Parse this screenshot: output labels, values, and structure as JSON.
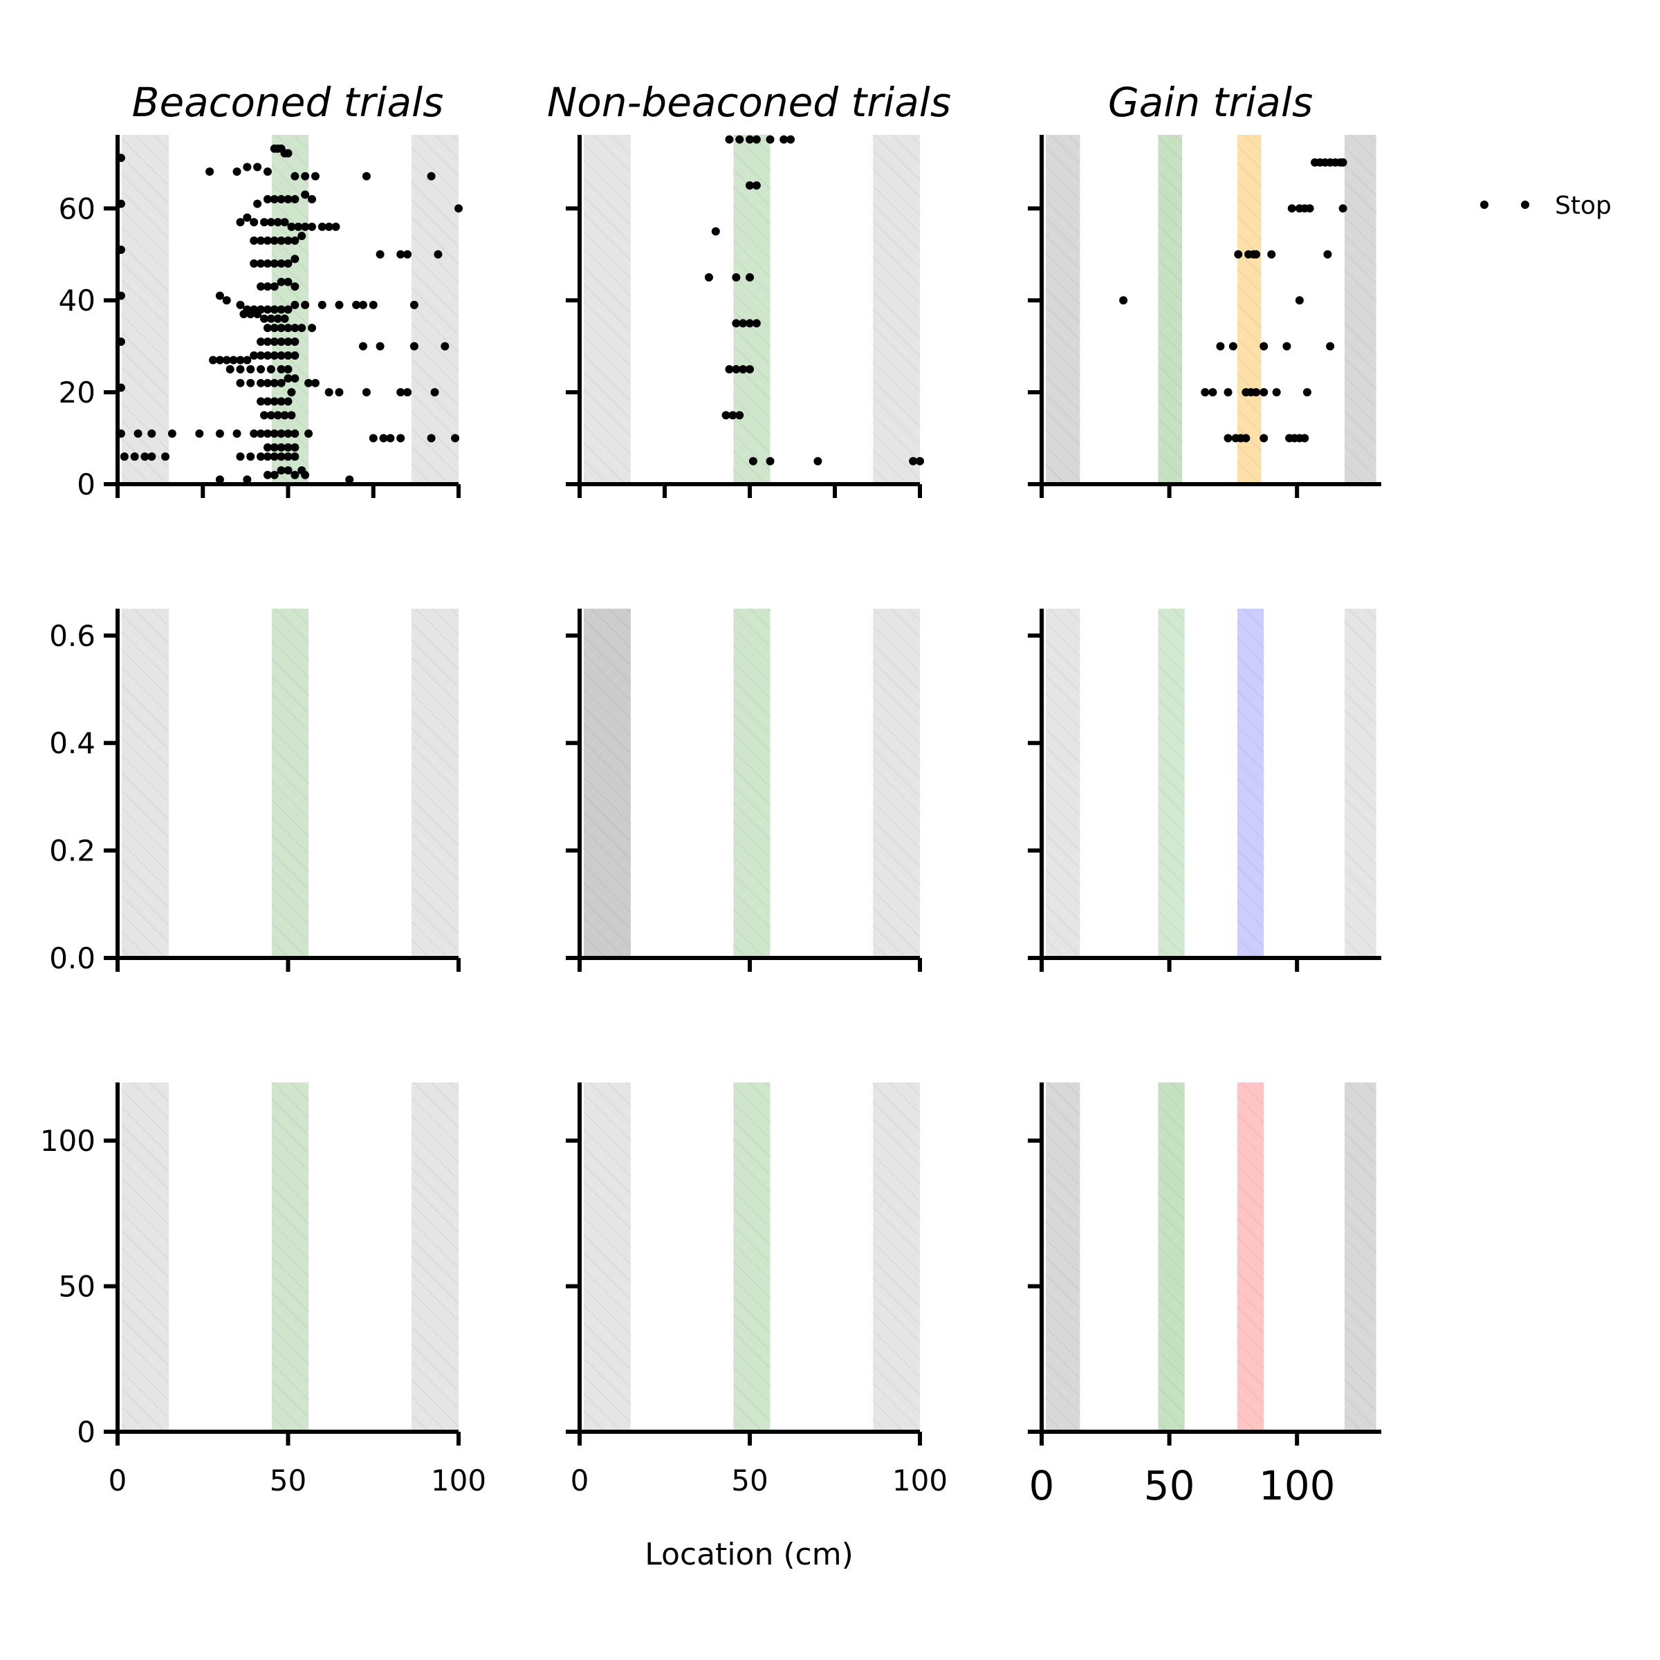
{
  "chart_data": {
    "type": "scatter",
    "xlabel": "Location (cm)",
    "legend": {
      "label": "Stop",
      "placement": "right"
    },
    "columns": [
      {
        "title": "Beaconed trials",
        "xlim": [
          0,
          100
        ]
      },
      {
        "title": "Non-beaconed trials",
        "xlim": [
          0,
          100
        ]
      },
      {
        "title": "Gain trials",
        "xlim": [
          0,
          133
        ]
      }
    ],
    "rows": [
      {
        "ylim": [
          0,
          76
        ],
        "yticks": [
          0,
          20,
          40,
          60
        ]
      },
      {
        "ylim": [
          0,
          0.65
        ],
        "yticks": [
          "0.0",
          "0.2",
          "0.4",
          "0.6"
        ]
      },
      {
        "ylim": [
          0,
          120
        ],
        "yticks": [
          0,
          50,
          100
        ]
      }
    ],
    "xticks": {
      "standard": [
        0,
        50,
        100
      ],
      "gain": [
        0,
        50,
        100
      ]
    },
    "zones": [
      {
        "col": 0,
        "row": "all",
        "x": [
          0,
          15
        ],
        "color": "#e5e5e5"
      },
      {
        "col": 0,
        "row": "all",
        "x": [
          44,
          56
        ],
        "color": "#cfe6cc"
      },
      {
        "col": 0,
        "row": "all",
        "x": [
          85,
          100
        ],
        "color": "#e5e5e5"
      },
      {
        "col": 1,
        "row": "all",
        "x": [
          0,
          15
        ],
        "color": "#e5e5e5"
      },
      {
        "col": 1,
        "row": 1,
        "x": [
          0,
          15
        ],
        "color": "#cccccc"
      },
      {
        "col": 1,
        "row": "all",
        "x": [
          44,
          56
        ],
        "color": "#cfe6cc"
      },
      {
        "col": 1,
        "row": "all",
        "x": [
          85,
          100
        ],
        "color": "#e5e5e5"
      },
      {
        "col": 2,
        "row": 0,
        "x": [
          0,
          15
        ],
        "color": "#d8d8d8"
      },
      {
        "col": 2,
        "row": 0,
        "x": [
          44,
          55
        ],
        "color": "#c6e1c2"
      },
      {
        "col": 2,
        "row": 0,
        "x": [
          75,
          86
        ],
        "color": "#fde0a8"
      },
      {
        "col": 2,
        "row": 0,
        "x": [
          117,
          131
        ],
        "color": "#d8d8d8"
      },
      {
        "col": 2,
        "row": 1,
        "x": [
          0,
          15
        ],
        "color": "#e5e5e5"
      },
      {
        "col": 2,
        "row": 1,
        "x": [
          44,
          56
        ],
        "color": "#d3e8d0"
      },
      {
        "col": 2,
        "row": 1,
        "x": [
          75,
          87
        ],
        "color": "#ccccff"
      },
      {
        "col": 2,
        "row": 1,
        "x": [
          117,
          131
        ],
        "color": "#e5e5e5"
      },
      {
        "col": 2,
        "row": 2,
        "x": [
          0,
          15
        ],
        "color": "#d8d8d8"
      },
      {
        "col": 2,
        "row": 2,
        "x": [
          44,
          56
        ],
        "color": "#c6e1c2"
      },
      {
        "col": 2,
        "row": 2,
        "x": [
          75,
          87
        ],
        "color": "#ffc4c4"
      },
      {
        "col": 2,
        "row": 2,
        "x": [
          117,
          131
        ],
        "color": "#d8d8d8"
      }
    ],
    "stops": {
      "beaconed": [
        [
          1,
          71
        ],
        [
          1,
          61
        ],
        [
          1,
          51
        ],
        [
          1,
          41
        ],
        [
          1,
          31
        ],
        [
          1,
          21
        ],
        [
          1,
          11
        ],
        [
          2,
          6
        ],
        [
          5,
          6
        ],
        [
          8,
          6
        ],
        [
          10,
          6
        ],
        [
          14,
          6
        ],
        [
          6,
          11
        ],
        [
          10,
          11
        ],
        [
          16,
          11
        ],
        [
          24,
          11
        ],
        [
          30,
          11
        ],
        [
          35,
          11
        ],
        [
          40,
          11
        ],
        [
          27,
          68
        ],
        [
          35,
          68
        ],
        [
          38,
          69
        ],
        [
          41,
          69
        ],
        [
          44,
          68
        ],
        [
          46,
          73
        ],
        [
          47,
          73
        ],
        [
          48,
          73
        ],
        [
          49,
          72
        ],
        [
          50,
          72
        ],
        [
          52,
          67
        ],
        [
          55,
          67
        ],
        [
          58,
          67
        ],
        [
          73,
          67
        ],
        [
          92,
          67
        ],
        [
          41,
          61
        ],
        [
          44,
          62
        ],
        [
          46,
          62
        ],
        [
          48,
          62
        ],
        [
          50,
          62
        ],
        [
          52,
          62
        ],
        [
          55,
          63
        ],
        [
          57,
          62
        ],
        [
          36,
          57
        ],
        [
          38,
          58
        ],
        [
          40,
          57
        ],
        [
          43,
          57
        ],
        [
          45,
          57
        ],
        [
          47,
          57
        ],
        [
          49,
          57
        ],
        [
          51,
          56
        ],
        [
          53,
          56
        ],
        [
          55,
          56
        ],
        [
          57,
          56
        ],
        [
          60,
          56
        ],
        [
          62,
          56
        ],
        [
          64,
          56
        ],
        [
          40,
          53
        ],
        [
          42,
          53
        ],
        [
          44,
          53
        ],
        [
          46,
          53
        ],
        [
          48,
          53
        ],
        [
          50,
          53
        ],
        [
          52,
          53
        ],
        [
          54,
          54
        ],
        [
          40,
          48
        ],
        [
          42,
          48
        ],
        [
          44,
          48
        ],
        [
          46,
          48
        ],
        [
          48,
          48
        ],
        [
          50,
          48
        ],
        [
          52,
          49
        ],
        [
          77,
          50
        ],
        [
          83,
          50
        ],
        [
          85,
          50
        ],
        [
          94,
          50
        ],
        [
          100,
          60
        ],
        [
          42,
          43
        ],
        [
          44,
          43
        ],
        [
          46,
          43
        ],
        [
          48,
          44
        ],
        [
          50,
          44
        ],
        [
          52,
          43
        ],
        [
          30,
          41
        ],
        [
          32,
          40
        ],
        [
          36,
          39
        ],
        [
          38,
          38
        ],
        [
          40,
          38
        ],
        [
          42,
          38
        ],
        [
          44,
          38
        ],
        [
          46,
          38
        ],
        [
          48,
          38
        ],
        [
          50,
          38
        ],
        [
          52,
          39
        ],
        [
          55,
          39
        ],
        [
          60,
          39
        ],
        [
          65,
          39
        ],
        [
          70,
          39
        ],
        [
          72,
          39
        ],
        [
          75,
          39
        ],
        [
          87,
          39
        ],
        [
          37,
          37
        ],
        [
          39,
          37
        ],
        [
          41,
          37
        ],
        [
          43,
          36
        ],
        [
          45,
          36
        ],
        [
          47,
          36
        ],
        [
          49,
          36
        ],
        [
          44,
          34
        ],
        [
          46,
          34
        ],
        [
          48,
          34
        ],
        [
          50,
          34
        ],
        [
          52,
          34
        ],
        [
          54,
          34
        ],
        [
          57,
          34
        ],
        [
          42,
          31
        ],
        [
          44,
          31
        ],
        [
          46,
          31
        ],
        [
          48,
          31
        ],
        [
          50,
          31
        ],
        [
          52,
          31
        ],
        [
          72,
          30
        ],
        [
          77,
          30
        ],
        [
          87,
          30
        ],
        [
          96,
          30
        ],
        [
          28,
          27
        ],
        [
          30,
          27
        ],
        [
          32,
          27
        ],
        [
          34,
          27
        ],
        [
          36,
          27
        ],
        [
          38,
          27
        ],
        [
          40,
          28
        ],
        [
          42,
          28
        ],
        [
          44,
          28
        ],
        [
          46,
          28
        ],
        [
          48,
          28
        ],
        [
          50,
          28
        ],
        [
          52,
          28
        ],
        [
          33,
          25
        ],
        [
          36,
          25
        ],
        [
          39,
          25
        ],
        [
          42,
          25
        ],
        [
          45,
          25
        ],
        [
          48,
          25
        ],
        [
          50,
          25
        ],
        [
          36,
          22
        ],
        [
          39,
          22
        ],
        [
          42,
          22
        ],
        [
          44,
          22
        ],
        [
          46,
          22
        ],
        [
          48,
          22
        ],
        [
          50,
          23
        ],
        [
          52,
          23
        ],
        [
          56,
          22
        ],
        [
          58,
          22
        ],
        [
          42,
          18
        ],
        [
          44,
          18
        ],
        [
          46,
          18
        ],
        [
          48,
          18
        ],
        [
          50,
          18
        ],
        [
          51,
          20
        ],
        [
          62,
          20
        ],
        [
          65,
          20
        ],
        [
          73,
          20
        ],
        [
          83,
          20
        ],
        [
          85,
          20
        ],
        [
          93,
          20
        ],
        [
          43,
          15
        ],
        [
          45,
          15
        ],
        [
          47,
          15
        ],
        [
          49,
          15
        ],
        [
          51,
          15
        ],
        [
          42,
          11
        ],
        [
          44,
          11
        ],
        [
          46,
          11
        ],
        [
          48,
          11
        ],
        [
          50,
          11
        ],
        [
          52,
          11
        ],
        [
          56,
          11
        ],
        [
          75,
          10
        ],
        [
          78,
          10
        ],
        [
          80,
          10
        ],
        [
          83,
          10
        ],
        [
          92,
          10
        ],
        [
          99,
          10
        ],
        [
          44,
          8
        ],
        [
          46,
          8
        ],
        [
          48,
          8
        ],
        [
          50,
          8
        ],
        [
          52,
          8
        ],
        [
          36,
          6
        ],
        [
          39,
          6
        ],
        [
          42,
          6
        ],
        [
          44,
          6
        ],
        [
          46,
          6
        ],
        [
          48,
          6
        ],
        [
          50,
          6
        ],
        [
          52,
          6
        ],
        [
          30,
          1
        ],
        [
          38,
          1
        ],
        [
          44,
          2
        ],
        [
          46,
          2
        ],
        [
          48,
          3
        ],
        [
          50,
          3
        ],
        [
          52,
          2
        ],
        [
          54,
          3
        ],
        [
          55,
          2
        ],
        [
          68,
          1
        ]
      ],
      "nonbeaconed": [
        [
          44,
          75
        ],
        [
          47,
          75
        ],
        [
          50,
          75
        ],
        [
          52,
          75
        ],
        [
          56,
          75
        ],
        [
          60,
          75
        ],
        [
          62,
          75
        ],
        [
          50,
          65
        ],
        [
          52,
          65
        ],
        [
          40,
          55
        ],
        [
          38,
          45
        ],
        [
          46,
          45
        ],
        [
          50,
          45
        ],
        [
          46,
          35
        ],
        [
          48,
          35
        ],
        [
          50,
          35
        ],
        [
          52,
          35
        ],
        [
          44,
          25
        ],
        [
          46,
          25
        ],
        [
          48,
          25
        ],
        [
          50,
          25
        ],
        [
          43,
          15
        ],
        [
          45,
          15
        ],
        [
          47,
          15
        ],
        [
          51,
          5
        ],
        [
          56,
          5
        ],
        [
          70,
          5
        ],
        [
          98,
          5
        ],
        [
          100,
          5
        ]
      ],
      "gain": [
        [
          107,
          70
        ],
        [
          109,
          70
        ],
        [
          111,
          70
        ],
        [
          113,
          70
        ],
        [
          115,
          70
        ],
        [
          117,
          70
        ],
        [
          118,
          70
        ],
        [
          98,
          60
        ],
        [
          101,
          60
        ],
        [
          103,
          60
        ],
        [
          105,
          60
        ],
        [
          118,
          60
        ],
        [
          77,
          50
        ],
        [
          81,
          50
        ],
        [
          83,
          50
        ],
        [
          84,
          50
        ],
        [
          90,
          50
        ],
        [
          112,
          50
        ],
        [
          32,
          40
        ],
        [
          101,
          40
        ],
        [
          70,
          30
        ],
        [
          75,
          30
        ],
        [
          87,
          30
        ],
        [
          96,
          30
        ],
        [
          113,
          30
        ],
        [
          64,
          20
        ],
        [
          67,
          20
        ],
        [
          73,
          20
        ],
        [
          80,
          20
        ],
        [
          82,
          20
        ],
        [
          84,
          20
        ],
        [
          87,
          20
        ],
        [
          92,
          20
        ],
        [
          104,
          20
        ],
        [
          73,
          10
        ],
        [
          76,
          10
        ],
        [
          78,
          10
        ],
        [
          80,
          10
        ],
        [
          87,
          10
        ],
        [
          97,
          10
        ],
        [
          99,
          10
        ],
        [
          101,
          10
        ],
        [
          103,
          10
        ]
      ]
    }
  }
}
